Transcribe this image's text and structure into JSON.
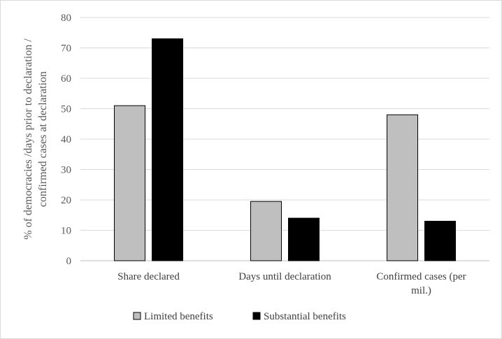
{
  "chart_data": {
    "type": "bar",
    "title": "",
    "ylabel": [
      "% of democracies /days prior to declaration /",
      "confirmed cases at declaration"
    ],
    "xlabel": "",
    "ylim": [
      0,
      80
    ],
    "yticks": [
      0,
      10,
      20,
      30,
      40,
      50,
      60,
      70,
      80
    ],
    "categories": [
      [
        "Share declared"
      ],
      [
        "Days until declaration"
      ],
      [
        "Confirmed cases (per",
        "mil.)"
      ]
    ],
    "series": [
      {
        "name": "Limited benefits",
        "color": "#bfbfbf",
        "values": [
          51,
          19.5,
          48
        ]
      },
      {
        "name": "Substantial benefits",
        "color": "#000000",
        "values": [
          73,
          14,
          13
        ]
      }
    ],
    "grid": true,
    "legend": "bottom"
  }
}
